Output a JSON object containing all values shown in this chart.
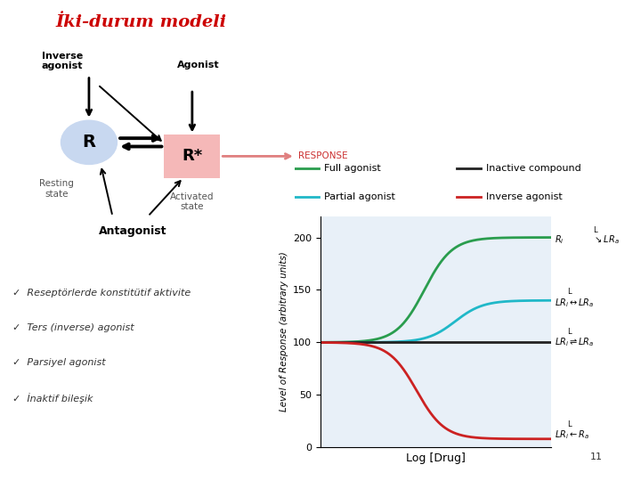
{
  "title": "İki-durum modeli",
  "title_color": "#cc0000",
  "bg_color": "#ffffff",
  "diagram": {
    "R_bg": "#c8d8f0",
    "Rstar_bg": "#f5b8b8"
  },
  "legend": {
    "full_agonist_color": "#2a9d4e",
    "partial_agonist_color": "#20b8c8",
    "inactive_color": "#222222",
    "inverse_agonist_color": "#cc2222",
    "full_agonist_label": "Full agonist",
    "partial_agonist_label": "Partial agonist",
    "inactive_label": "Inactive compound",
    "inverse_agonist_label": "Inverse agonist"
  },
  "plot": {
    "xmin": -3,
    "xmax": 3,
    "ymin": 0,
    "ymax": 220,
    "yticks": [
      0,
      50,
      100,
      150,
      200
    ],
    "xlabel": "Log [Drug]",
    "ylabel": "Level of Response (arbitrary units)",
    "bg_color": "#e8f0f8",
    "full_agonist_baseline": 100,
    "full_agonist_max": 200,
    "full_agonist_ec50": -0.3,
    "full_agonist_hill": 1.2,
    "partial_agonist_baseline": 100,
    "partial_agonist_max": 140,
    "partial_agonist_ec50": 0.5,
    "partial_agonist_hill": 1.2,
    "inverse_agonist_baseline": 100,
    "inverse_agonist_min": 8,
    "inverse_agonist_ec50": -0.5,
    "inverse_agonist_hill": 1.2
  },
  "bullet_points": [
    "Reseptörlerde konstitütif aktivite",
    "Ters (inverse) agonist",
    "Parsiyel agonist",
    "İnaktif bileşik"
  ]
}
